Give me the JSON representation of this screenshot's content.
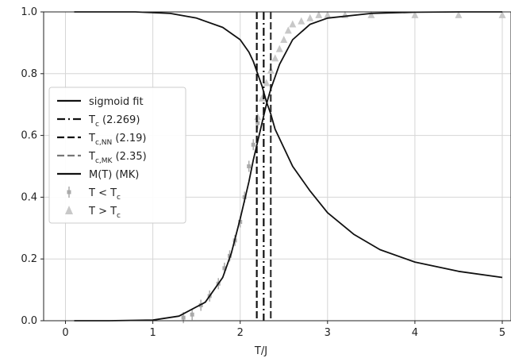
{
  "chart_data": {
    "type": "line",
    "title": "",
    "xlabel": "T/J",
    "ylabel": "",
    "xlim": [
      -0.25,
      5.1
    ],
    "ylim": [
      0.0,
      1.0
    ],
    "grid": true,
    "legend_position": "center-left",
    "xticks": [
      0,
      1,
      2,
      3,
      4,
      5
    ],
    "xtick_labels": [
      "0",
      "1",
      "2",
      "3",
      "4",
      "5"
    ],
    "yticks": [
      0.0,
      0.2,
      0.4,
      0.6,
      0.8,
      1.0
    ],
    "ytick_labels": [
      "0.0",
      "0.2",
      "0.4",
      "0.6",
      "0.8",
      "1.0"
    ],
    "series": [
      {
        "name": "sigmoid fit",
        "style": "solid",
        "color": "#111111",
        "x": [
          0.1,
          0.5,
          1.0,
          1.3,
          1.6,
          1.8,
          1.9,
          2.0,
          2.05,
          2.1,
          2.15,
          2.2,
          2.25,
          2.3,
          2.35,
          2.45,
          2.6,
          2.8,
          3.0,
          3.5,
          4.0,
          4.5,
          5.0
        ],
        "y": [
          0.0,
          0.0,
          0.002,
          0.015,
          0.06,
          0.14,
          0.22,
          0.33,
          0.39,
          0.45,
          0.52,
          0.58,
          0.64,
          0.7,
          0.75,
          0.83,
          0.91,
          0.96,
          0.98,
          0.995,
          0.999,
          1.0,
          1.0
        ]
      },
      {
        "name": "M(T) (MK)",
        "style": "solid",
        "color": "#111111",
        "x": [
          0.1,
          0.8,
          1.2,
          1.5,
          1.8,
          2.0,
          2.1,
          2.15,
          2.2,
          2.25,
          2.3,
          2.35,
          2.4,
          2.5,
          2.6,
          2.8,
          3.0,
          3.3,
          3.6,
          4.0,
          4.5,
          5.0
        ],
        "y": [
          1.0,
          1.0,
          0.995,
          0.98,
          0.95,
          0.91,
          0.87,
          0.84,
          0.8,
          0.76,
          0.71,
          0.67,
          0.62,
          0.56,
          0.5,
          0.42,
          0.35,
          0.28,
          0.23,
          0.19,
          0.16,
          0.14
        ]
      },
      {
        "name": "T < T_c",
        "marker": "errorbar",
        "color": "#aaaaaa",
        "x": [
          1.35,
          1.45,
          1.55,
          1.65,
          1.75,
          1.82,
          1.88,
          1.94,
          2.0,
          2.05,
          2.1,
          2.15,
          2.2
        ],
        "y": [
          0.01,
          0.02,
          0.05,
          0.08,
          0.12,
          0.17,
          0.21,
          0.26,
          0.32,
          0.4,
          0.5,
          0.57,
          0.64
        ]
      },
      {
        "name": "T > T_c",
        "marker": "triangle",
        "color": "#c8c8c8",
        "x": [
          2.2,
          2.25,
          2.3,
          2.35,
          2.4,
          2.45,
          2.5,
          2.55,
          2.6,
          2.7,
          2.8,
          2.9,
          3.0,
          3.2,
          3.5,
          4.0,
          4.5,
          5.0
        ],
        "y": [
          0.66,
          0.72,
          0.77,
          0.81,
          0.85,
          0.88,
          0.91,
          0.94,
          0.96,
          0.97,
          0.98,
          0.99,
          0.99,
          0.99,
          0.99,
          0.99,
          0.99,
          0.99
        ]
      }
    ],
    "vlines": [
      {
        "name": "T_c (2.269)",
        "x": 2.269,
        "style": "dashdot",
        "color": "#111111"
      },
      {
        "name": "T_c,NN (2.19)",
        "x": 2.19,
        "style": "dashed",
        "color": "#111111"
      },
      {
        "name": "T_c,MK (2.35)",
        "x": 2.35,
        "style": "dashed",
        "color": "#333333"
      }
    ],
    "legend": [
      {
        "main": "sigmoid fit",
        "sub": "",
        "tail": ""
      },
      {
        "main": "T",
        "sub": "c",
        "tail": " (2.269)"
      },
      {
        "main": "T",
        "sub": "c,NN",
        "tail": " (2.19)"
      },
      {
        "main": "T",
        "sub": "c,MK",
        "tail": " (2.35)"
      },
      {
        "main": "M(T) (MK)",
        "sub": "",
        "tail": ""
      },
      {
        "main": "T < T",
        "sub": "c",
        "tail": ""
      },
      {
        "main": "T > T",
        "sub": "c",
        "tail": ""
      }
    ]
  }
}
